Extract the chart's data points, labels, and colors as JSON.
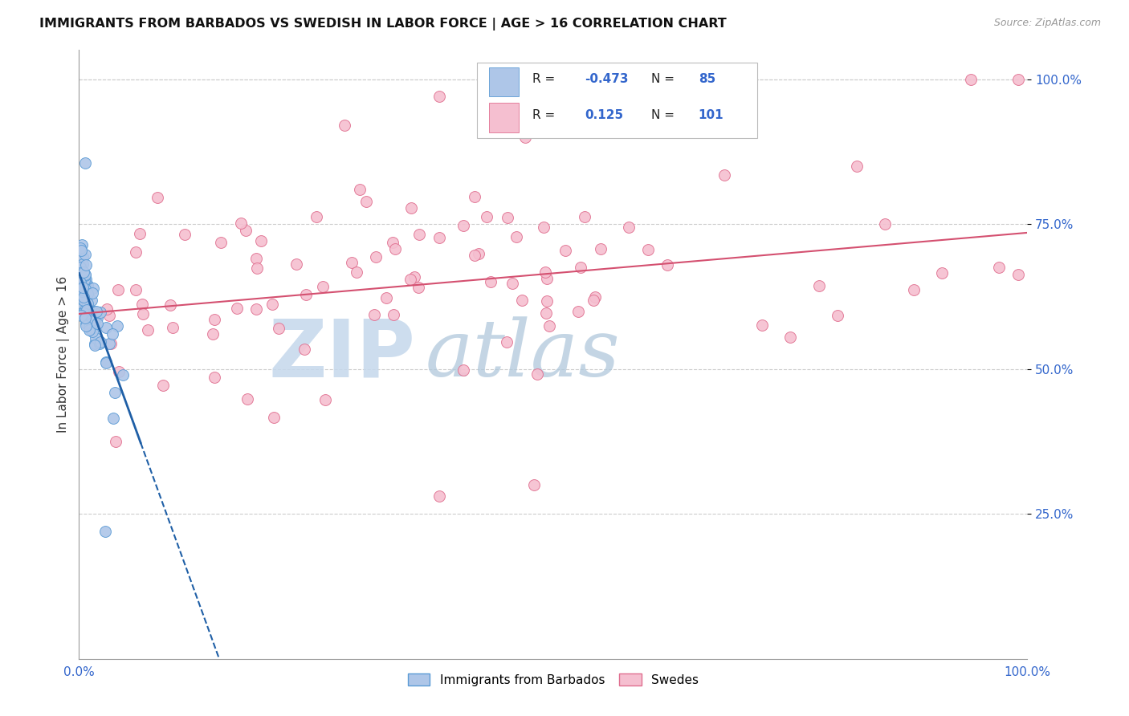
{
  "title": "IMMIGRANTS FROM BARBADOS VS SWEDISH IN LABOR FORCE | AGE > 16 CORRELATION CHART",
  "source": "Source: ZipAtlas.com",
  "ylabel": "In Labor Force | Age > 16",
  "xlim": [
    0.0,
    1.0
  ],
  "ylim": [
    0.0,
    1.05
  ],
  "ytick_positions": [
    0.25,
    0.5,
    0.75,
    1.0
  ],
  "ytick_labels": [
    "25.0%",
    "50.0%",
    "75.0%",
    "100.0%"
  ],
  "xtick_positions": [
    0.0,
    1.0
  ],
  "xtick_labels": [
    "0.0%",
    "100.0%"
  ],
  "barbados_fill_color": "#aec6e8",
  "barbados_edge_color": "#5b9bd5",
  "swedes_fill_color": "#f5bfd0",
  "swedes_edge_color": "#e07090",
  "trendline_barbados_color": "#1f5fa6",
  "trendline_swedes_color": "#d45070",
  "axis_label_color": "#3366cc",
  "watermark_zip_color": "#c5d8ec",
  "watermark_atlas_color": "#b0c8dc",
  "legend_r_barbados": "-0.473",
  "legend_n_barbados": "85",
  "legend_r_swedes": "0.125",
  "legend_n_swedes": "101",
  "grid_color": "#cccccc",
  "marker_size": 100
}
